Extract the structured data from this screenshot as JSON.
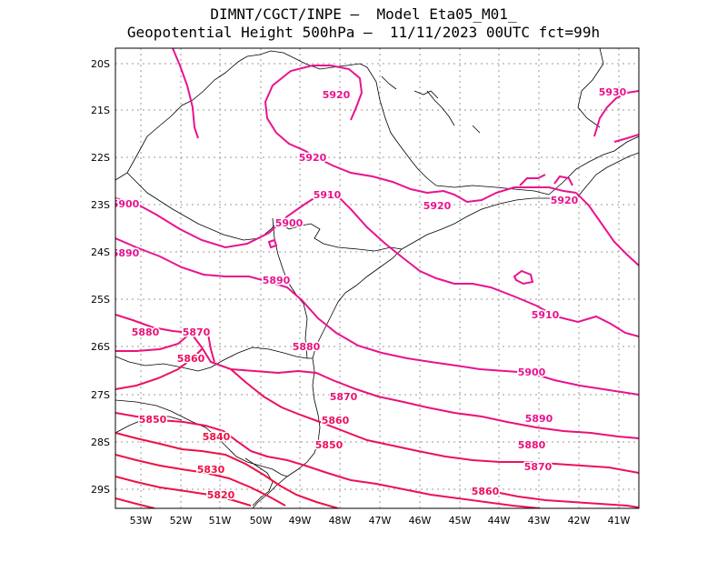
{
  "header": {
    "line1": "DIMNT/CGCT/INPE –  Model Eta05_M01_",
    "line2": "Geopotential Height 500hPa –  11/11/2023 00UTC fct=99h"
  },
  "axes": {
    "lat_labels": [
      "20S",
      "21S",
      "22S",
      "23S",
      "24S",
      "25S",
      "26S",
      "27S",
      "28S",
      "29S"
    ],
    "lon_labels": [
      "53W",
      "52W",
      "51W",
      "50W",
      "49W",
      "48W",
      "47W",
      "46W",
      "45W",
      "44W",
      "43W",
      "42W",
      "41W"
    ]
  },
  "contour_labels": [
    {
      "text": "5930",
      "color": "#e8138f"
    },
    {
      "text": "5920",
      "color": "#e8138f"
    },
    {
      "text": "5920",
      "color": "#e8138f"
    },
    {
      "text": "5920",
      "color": "#e8138f"
    },
    {
      "text": "5920",
      "color": "#e8138f"
    },
    {
      "text": "5910",
      "color": "#e8138f"
    },
    {
      "text": "5910",
      "color": "#e8138f"
    },
    {
      "text": "5900",
      "color": "#e8138f"
    },
    {
      "text": "5900",
      "color": "#e8138f"
    },
    {
      "text": "5900",
      "color": "#e8138f"
    },
    {
      "text": "5890",
      "color": "#e8138f"
    },
    {
      "text": "5890",
      "color": "#e8138f"
    },
    {
      "text": "5890",
      "color": "#e8138f"
    },
    {
      "text": "5880",
      "color": "#ea1278"
    },
    {
      "text": "5880",
      "color": "#ea1278"
    },
    {
      "text": "5880",
      "color": "#ea1278"
    },
    {
      "text": "5870",
      "color": "#ea1278"
    },
    {
      "text": "5870",
      "color": "#ea1278"
    },
    {
      "text": "5870",
      "color": "#ea1278"
    },
    {
      "text": "5860",
      "color": "#ec1060"
    },
    {
      "text": "5860",
      "color": "#ec1060"
    },
    {
      "text": "5860",
      "color": "#ec1060"
    },
    {
      "text": "5850",
      "color": "#ec1060"
    },
    {
      "text": "5850",
      "color": "#ec1060"
    },
    {
      "text": "5840",
      "color": "#ee1044"
    },
    {
      "text": "5830",
      "color": "#ee1044"
    },
    {
      "text": "5820",
      "color": "#ee1044"
    }
  ],
  "colors": {
    "contour_high": "#e8138f",
    "contour_mid": "#ea1278",
    "contour_low": "#ec1060",
    "contour_lowest": "#ee1044",
    "coast": "#000000",
    "grid": "#999999"
  }
}
